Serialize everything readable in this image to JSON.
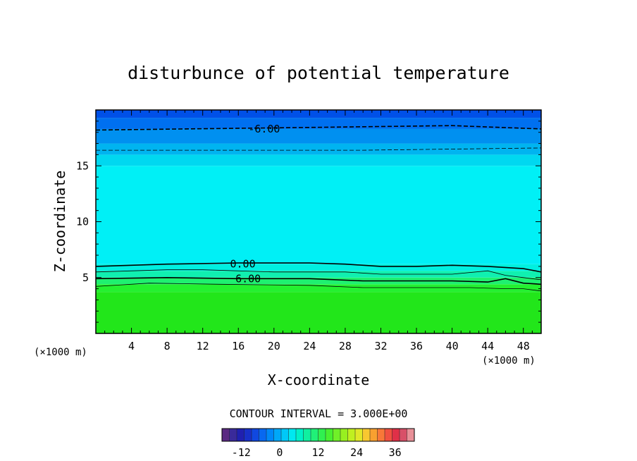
{
  "chart_data": {
    "type": "heatmap",
    "title": "disturbunce of potential temperature",
    "xlabel": "X-coordinate",
    "ylabel": "Z-coordinate",
    "x_unit": "(×1000 m)",
    "y_unit": "(×1000 m)",
    "xlim": [
      0,
      50
    ],
    "ylim": [
      0,
      20
    ],
    "x_ticks": [
      4,
      8,
      12,
      16,
      20,
      24,
      28,
      32,
      36,
      40,
      44,
      48
    ],
    "y_ticks": [
      5,
      10,
      15
    ],
    "contour_interval_text": "CONTOUR INTERVAL = 3.000E+00",
    "contour_labels": [
      {
        "text": "-6.00",
        "x": 18.9,
        "z": 18.3
      },
      {
        "text": "0.00",
        "x": 16.5,
        "z": 6.2
      },
      {
        "text": "6.00",
        "x": 17.1,
        "z": 4.9
      }
    ],
    "contours": [
      {
        "level": -6,
        "style": "dashed",
        "points": [
          [
            0,
            18.2
          ],
          [
            10,
            18.3
          ],
          [
            20,
            18.4
          ],
          [
            30,
            18.5
          ],
          [
            40,
            18.6
          ],
          [
            50,
            18.3
          ]
        ]
      },
      {
        "level": -3,
        "style": "dashed",
        "points": [
          [
            0,
            16.4
          ],
          [
            10,
            16.4
          ],
          [
            20,
            16.4
          ],
          [
            30,
            16.4
          ],
          [
            40,
            16.5
          ],
          [
            50,
            16.6
          ]
        ]
      },
      {
        "level": 0,
        "style": "solid",
        "points": [
          [
            0,
            6.0
          ],
          [
            8,
            6.2
          ],
          [
            16,
            6.3
          ],
          [
            24,
            6.3
          ],
          [
            28,
            6.2
          ],
          [
            32,
            6.0
          ],
          [
            36,
            6.0
          ],
          [
            40,
            6.1
          ],
          [
            44,
            6.0
          ],
          [
            48,
            5.8
          ],
          [
            50,
            5.5
          ]
        ]
      },
      {
        "level": 3,
        "style": "solid",
        "points": [
          [
            0,
            5.5
          ],
          [
            8,
            5.7
          ],
          [
            12,
            5.7
          ],
          [
            20,
            5.5
          ],
          [
            28,
            5.5
          ],
          [
            32,
            5.3
          ],
          [
            40,
            5.3
          ],
          [
            44,
            5.6
          ],
          [
            46,
            5.2
          ],
          [
            48,
            5.0
          ],
          [
            50,
            4.8
          ]
        ]
      },
      {
        "level": 6,
        "style": "solid",
        "points": [
          [
            0,
            4.9
          ],
          [
            8,
            5.0
          ],
          [
            16,
            4.9
          ],
          [
            24,
            4.9
          ],
          [
            30,
            4.7
          ],
          [
            36,
            4.7
          ],
          [
            40,
            4.7
          ],
          [
            44,
            4.6
          ],
          [
            46,
            4.9
          ],
          [
            48,
            4.5
          ],
          [
            50,
            4.4
          ]
        ]
      },
      {
        "level": 9,
        "style": "solid",
        "points": [
          [
            0,
            4.2
          ],
          [
            6,
            4.5
          ],
          [
            14,
            4.4
          ],
          [
            24,
            4.3
          ],
          [
            30,
            4.1
          ],
          [
            36,
            4.1
          ],
          [
            42,
            4.1
          ],
          [
            46,
            4.0
          ],
          [
            48,
            4.0
          ],
          [
            50,
            3.8
          ]
        ]
      }
    ],
    "field_bands": [
      {
        "z_from": 0,
        "z_to": 3.7,
        "color": "#22e61a"
      },
      {
        "z_from": 3.7,
        "z_to": 4.4,
        "color": "#24f030"
      },
      {
        "z_from": 4.4,
        "z_to": 5.0,
        "color": "#1ff070"
      },
      {
        "z_from": 5.0,
        "z_to": 5.6,
        "color": "#10f0b0"
      },
      {
        "z_from": 5.6,
        "z_to": 6.2,
        "color": "#00f0e0"
      },
      {
        "z_from": 6.2,
        "z_to": 15.0,
        "color": "#00f0f6"
      },
      {
        "z_from": 15.0,
        "z_to": 16.0,
        "color": "#00d8f0"
      },
      {
        "z_from": 16.0,
        "z_to": 17.0,
        "color": "#00b4f0"
      },
      {
        "z_from": 17.0,
        "z_to": 18.3,
        "color": "#0090f0"
      },
      {
        "z_from": 18.3,
        "z_to": 19.3,
        "color": "#0070f0"
      },
      {
        "z_from": 19.3,
        "z_to": 20.0,
        "color": "#0050e8"
      }
    ],
    "colorbar": {
      "min": -18,
      "max": 42,
      "ticks": [
        -12,
        0,
        12,
        24,
        36
      ],
      "tick_labels": [
        "-12",
        "0",
        "12",
        "24",
        "36"
      ],
      "colors": [
        "#5a2a82",
        "#3a2a9a",
        "#2020b0",
        "#1830c8",
        "#1048e0",
        "#0868f0",
        "#0088f8",
        "#00a8f8",
        "#00c8f8",
        "#00e8f0",
        "#00f0c8",
        "#10f0a0",
        "#20f078",
        "#30f050",
        "#48f030",
        "#70f028",
        "#98f020",
        "#c0f020",
        "#e0e828",
        "#f8c830",
        "#f8a030",
        "#f87838",
        "#f05040",
        "#e03048",
        "#d85068",
        "#e89098"
      ]
    }
  }
}
